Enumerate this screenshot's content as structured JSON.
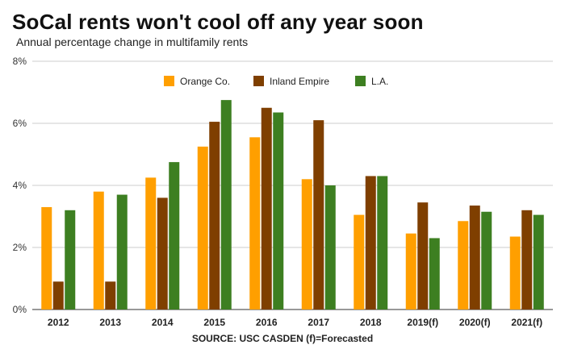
{
  "title": "SoCal rents won't cool off any year soon",
  "subtitle": "Annual percentage change in multifamily rents",
  "source": "SOURCE: USC CASDEN (f)=Forecasted",
  "chart_data": {
    "type": "bar",
    "title": "SoCal rents won't cool off any year soon",
    "subtitle": "Annual percentage change in multifamily rents",
    "xlabel": "",
    "ylabel": "",
    "ylim": [
      0,
      8
    ],
    "yticks": [
      0,
      2,
      4,
      6,
      8
    ],
    "ytick_labels": [
      "0%",
      "2%",
      "4%",
      "6%",
      "8%"
    ],
    "grid": true,
    "legend_position": "top-center",
    "categories": [
      "2012",
      "2013",
      "2014",
      "2015",
      "2016",
      "2017",
      "2018",
      "2019(f)",
      "2020(f)",
      "2021(f)"
    ],
    "series": [
      {
        "name": "Orange Co.",
        "color": "#ff9f00",
        "values": [
          3.3,
          3.8,
          4.25,
          5.25,
          5.55,
          4.2,
          3.05,
          2.45,
          2.85,
          2.35
        ]
      },
      {
        "name": "Inland Empire",
        "color": "#7f3f00",
        "values": [
          0.9,
          0.9,
          3.6,
          6.05,
          6.5,
          6.1,
          4.3,
          3.45,
          3.35,
          3.2
        ]
      },
      {
        "name": "L.A.",
        "color": "#3d7f21",
        "values": [
          3.2,
          3.7,
          4.75,
          6.75,
          6.35,
          4.0,
          4.3,
          2.3,
          3.15,
          3.05
        ]
      }
    ]
  }
}
